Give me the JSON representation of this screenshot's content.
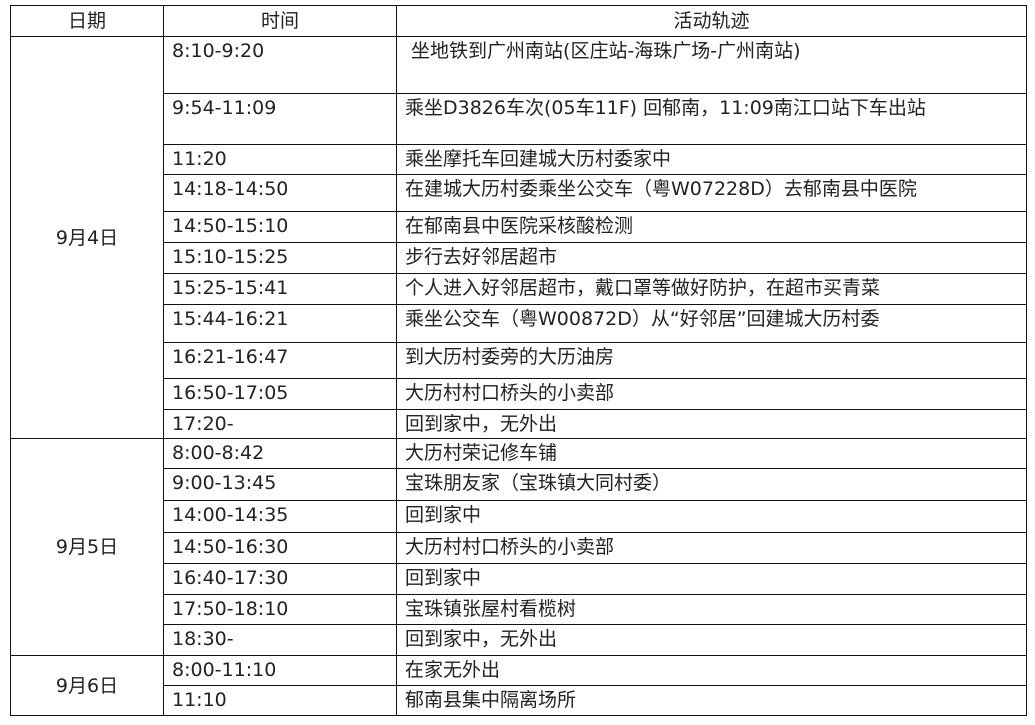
{
  "headers": {
    "date": "日期",
    "time": "时间",
    "activity": "活动轨迹"
  },
  "days": [
    {
      "date": "9月4日",
      "rows": [
        {
          "time": "8:10-9:20",
          "activity": " 坐地铁到广州南站(区庄站-海珠广场-广州南站)"
        },
        {
          "time": "9:54-11:09",
          "activity": "乘坐D3826车次(05车11F) 回郁南，11:09南江口站下车出站"
        },
        {
          "time": "11:20",
          "activity": "乘坐摩托车回建城大历村委家中"
        },
        {
          "time": "14:18-14:50",
          "activity": "在建城大历村委乘坐公交车（粤W07228D）去郁南县中医院"
        },
        {
          "time": "14:50-15:10",
          "activity": "在郁南县中医院采核酸检测"
        },
        {
          "time": "15:10-15:25",
          "activity": "步行去好邻居超市"
        },
        {
          "time": "15:25-15:41",
          "activity": "个人进入好邻居超市，戴口罩等做好防护，在超市买青菜"
        },
        {
          "time": "15:44-16:21",
          "activity": "乘坐公交车（粤W00872D）从“好邻居”回建城大历村委"
        },
        {
          "time": "16:21-16:47",
          "activity": "到大历村委旁的大历油房"
        },
        {
          "time": "16:50-17:05",
          "activity": "大历村村口桥头的小卖部"
        },
        {
          "time": "17:20-",
          "activity": "回到家中，无外出"
        }
      ]
    },
    {
      "date": "9月5日",
      "rows": [
        {
          "time": "8:00-8:42",
          "activity": "大历村荣记修车铺"
        },
        {
          "time": "9:00-13:45",
          "activity": "宝珠朋友家（宝珠镇大同村委）"
        },
        {
          "time": "14:00-14:35",
          "activity": "回到家中"
        },
        {
          "time": "14:50-16:30",
          "activity": "大历村村口桥头的小卖部"
        },
        {
          "time": "16:40-17:30",
          "activity": "回到家中"
        },
        {
          "time": "17:50-18:10",
          "activity": "宝珠镇张屋村看榄树"
        },
        {
          "time": "18:30-",
          "activity": "回到家中，无外出"
        }
      ]
    },
    {
      "date": "9月6日",
      "rows": [
        {
          "time": "8:00-11:10",
          "activity": "在家无外出"
        },
        {
          "time": "11:10",
          "activity": "郁南县集中隔离场所"
        }
      ]
    }
  ]
}
